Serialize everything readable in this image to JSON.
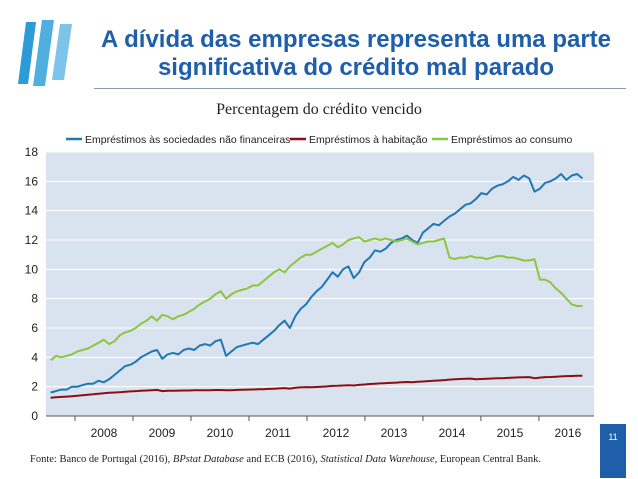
{
  "header": {
    "title": "A dívida das empresas representa uma parte significativa do crédito mal parado"
  },
  "footer": {
    "source_prefix": "Fonte: Banco de Portugal (2016), ",
    "source_italic1": "BPstat Database",
    "source_mid": " and ECB (2016), ",
    "source_italic2": "Statistical Data Warehouse",
    "source_suffix": ", European Central Bank.",
    "page_number": "11"
  },
  "colors": {
    "title": "#1f5fa9",
    "plot_bg": "#d9e3ef",
    "series_nfc": "#1f77b4",
    "series_housing": "#8b0f14",
    "series_consumer": "#8cc63e"
  },
  "chart_data": {
    "type": "line",
    "title": "Percentagem do crédito vencido",
    "xlabel": "",
    "ylabel": "",
    "ylim": [
      0,
      18
    ],
    "yticks": [
      0,
      2,
      4,
      6,
      8,
      10,
      12,
      14,
      16,
      18
    ],
    "xlim": [
      2007.5,
      2016.95
    ],
    "xticks": [
      "2008",
      "2009",
      "2010",
      "2011",
      "2012",
      "2013",
      "2014",
      "2015",
      "2016"
    ],
    "grid": "horizontal",
    "legend": "top",
    "x_start": 2007.58,
    "x_end": 2016.75,
    "series": [
      {
        "name": "Empréstimos às sociedades não financeiras",
        "values": [
          1.6,
          1.7,
          1.8,
          1.8,
          2.0,
          2.0,
          2.1,
          2.2,
          2.2,
          2.4,
          2.3,
          2.5,
          2.8,
          3.1,
          3.4,
          3.5,
          3.7,
          4.0,
          4.2,
          4.4,
          4.5,
          3.9,
          4.2,
          4.3,
          4.2,
          4.5,
          4.6,
          4.5,
          4.8,
          4.9,
          4.8,
          5.1,
          5.2,
          4.1,
          4.4,
          4.7,
          4.8,
          4.9,
          5.0,
          4.9,
          5.2,
          5.5,
          5.8,
          6.2,
          6.5,
          6.0,
          6.8,
          7.3,
          7.6,
          8.1,
          8.5,
          8.8,
          9.3,
          9.8,
          9.5,
          10.0,
          10.2,
          9.4,
          9.8,
          10.5,
          10.8,
          11.3,
          11.2,
          11.4,
          11.8,
          12.0,
          12.1,
          12.3,
          12.0,
          11.8,
          12.5,
          12.8,
          13.1,
          13.0,
          13.3,
          13.6,
          13.8,
          14.1,
          14.4,
          14.5,
          14.8,
          15.2,
          15.1,
          15.5,
          15.7,
          15.8,
          16.0,
          16.3,
          16.1,
          16.4,
          16.2,
          15.3,
          15.5,
          15.9,
          16.0,
          16.2,
          16.5,
          16.1,
          16.4,
          16.5,
          16.2
        ]
      },
      {
        "name": "Empréstimos à habitação",
        "values": [
          1.25,
          1.28,
          1.3,
          1.32,
          1.35,
          1.38,
          1.42,
          1.45,
          1.48,
          1.52,
          1.55,
          1.58,
          1.6,
          1.62,
          1.65,
          1.68,
          1.7,
          1.72,
          1.74,
          1.76,
          1.78,
          1.7,
          1.72,
          1.72,
          1.73,
          1.74,
          1.74,
          1.75,
          1.75,
          1.76,
          1.76,
          1.77,
          1.77,
          1.75,
          1.76,
          1.78,
          1.79,
          1.8,
          1.81,
          1.82,
          1.83,
          1.85,
          1.86,
          1.88,
          1.9,
          1.87,
          1.92,
          1.95,
          1.97,
          1.96,
          1.98,
          2.0,
          2.02,
          2.05,
          2.06,
          2.08,
          2.1,
          2.08,
          2.12,
          2.15,
          2.18,
          2.2,
          2.22,
          2.24,
          2.26,
          2.28,
          2.3,
          2.32,
          2.3,
          2.33,
          2.35,
          2.38,
          2.4,
          2.42,
          2.45,
          2.48,
          2.5,
          2.52,
          2.54,
          2.55,
          2.5,
          2.52,
          2.54,
          2.56,
          2.57,
          2.58,
          2.6,
          2.62,
          2.63,
          2.64,
          2.65,
          2.58,
          2.62,
          2.65,
          2.66,
          2.68,
          2.7,
          2.72,
          2.73,
          2.74,
          2.75
        ]
      },
      {
        "name": "Empréstimos ao consumo",
        "values": [
          3.8,
          4.1,
          4.0,
          4.1,
          4.2,
          4.4,
          4.5,
          4.6,
          4.8,
          5.0,
          5.2,
          4.9,
          5.1,
          5.5,
          5.7,
          5.8,
          6.0,
          6.3,
          6.5,
          6.8,
          6.5,
          6.9,
          6.8,
          6.6,
          6.8,
          6.9,
          7.1,
          7.3,
          7.6,
          7.8,
          8.0,
          8.3,
          8.5,
          8.0,
          8.3,
          8.5,
          8.6,
          8.7,
          8.9,
          8.9,
          9.2,
          9.5,
          9.8,
          10.0,
          9.8,
          10.2,
          10.5,
          10.8,
          11.0,
          11.0,
          11.2,
          11.4,
          11.6,
          11.8,
          11.5,
          11.7,
          12.0,
          12.1,
          12.2,
          11.9,
          12.0,
          12.1,
          12.0,
          12.1,
          12.0,
          11.9,
          12.0,
          12.1,
          11.9,
          11.7,
          11.8,
          11.9,
          11.9,
          12.0,
          12.1,
          10.8,
          10.7,
          10.8,
          10.8,
          10.9,
          10.8,
          10.8,
          10.7,
          10.8,
          10.9,
          10.9,
          10.8,
          10.8,
          10.7,
          10.6,
          10.6,
          10.7,
          9.3,
          9.3,
          9.1,
          8.7,
          8.4,
          8.0,
          7.6,
          7.5,
          7.5
        ]
      }
    ]
  }
}
